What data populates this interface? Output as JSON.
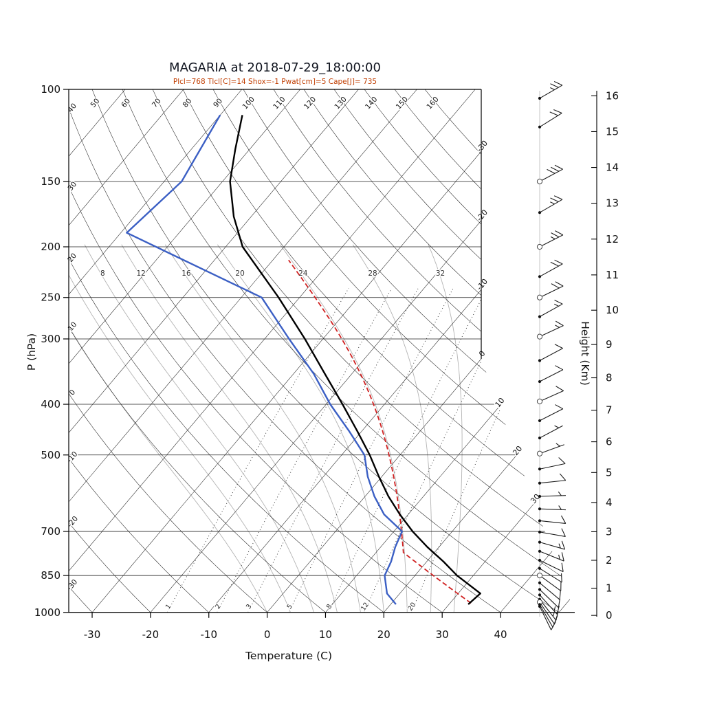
{
  "chart_data": {
    "type": "skewt-log-p",
    "title": "MAGARIA at 2018-07-29_18:00:00",
    "params_line": "Plcl=768 Tlcl[C]=14 Shox=-1 Pwat[cm]=5 Cape[J]= 735",
    "axes": {
      "pressure_label": "P (hPa)",
      "pressure_ticks_hpa": [
        100,
        150,
        200,
        250,
        300,
        400,
        500,
        700,
        850,
        1000
      ],
      "temperature_label": "Temperature (C)",
      "temperature_ticks_c": [
        -30,
        -20,
        -10,
        0,
        10,
        20,
        30,
        40
      ],
      "height_label": "Height (Km)",
      "height_ticks_km": [
        0,
        1,
        2,
        3,
        4,
        5,
        6,
        7,
        8,
        9,
        10,
        11,
        12,
        13,
        14,
        15,
        16
      ]
    },
    "background_grid": {
      "isotherms_c": [
        -110,
        -100,
        -90,
        -80,
        -70,
        -60,
        -50,
        -40,
        -30,
        -20,
        -10,
        0,
        10,
        20,
        30,
        40,
        50
      ],
      "isotherm_edge_labels_c": [
        -30,
        -20,
        -10,
        0,
        10,
        20,
        30
      ],
      "dry_adiabats_c": [
        -30,
        -20,
        -10,
        0,
        10,
        20,
        30,
        40,
        50,
        60,
        70,
        80,
        90,
        100,
        110,
        120,
        130,
        140,
        150,
        160
      ],
      "moist_adiabats_c": [
        0,
        4,
        8,
        12,
        16,
        20,
        24,
        28,
        32
      ],
      "moist_adiabat_labels_c": [
        8,
        12,
        16,
        20,
        24,
        28,
        32
      ],
      "mixing_ratio_gkg": [
        1,
        2,
        3,
        5,
        8,
        12,
        20
      ]
    },
    "sounding": {
      "temperature_p_c": [
        [
          965,
          33.3
        ],
        [
          920,
          33.8
        ],
        [
          850,
          27.2
        ],
        [
          800,
          22.9
        ],
        [
          750,
          18.0
        ],
        [
          700,
          13.2
        ],
        [
          650,
          8.6
        ],
        [
          600,
          4.0
        ],
        [
          550,
          -0.5
        ],
        [
          500,
          -5.2
        ],
        [
          450,
          -10.8
        ],
        [
          400,
          -17.2
        ],
        [
          350,
          -24.6
        ],
        [
          300,
          -33.1
        ],
        [
          250,
          -43.6
        ],
        [
          200,
          -57.1
        ],
        [
          175,
          -63.0
        ],
        [
          150,
          -68.7
        ],
        [
          130,
          -72.5
        ],
        [
          112,
          -76.2
        ]
      ],
      "dewpoint_p_c": [
        [
          965,
          20.9
        ],
        [
          920,
          17.8
        ],
        [
          850,
          14.8
        ],
        [
          800,
          13.9
        ],
        [
          750,
          12.5
        ],
        [
          700,
          11.4
        ],
        [
          650,
          5.9
        ],
        [
          600,
          1.6
        ],
        [
          550,
          -2.4
        ],
        [
          500,
          -6.1
        ],
        [
          450,
          -12.2
        ],
        [
          400,
          -19.3
        ],
        [
          350,
          -26.5
        ],
        [
          300,
          -35.8
        ],
        [
          250,
          -46.5
        ],
        [
          188,
          -79.0
        ],
        [
          150,
          -77.0
        ],
        [
          112,
          -80.0
        ]
      ],
      "parcel": {
        "p_surface_hpa": 960,
        "t_surface_c": 33.6,
        "p_lcl_hpa": 768,
        "t_lcl_c": 14,
        "p_top_hpa": 212,
        "cape_j": 735,
        "pwat_cm": 5,
        "showalter": -1
      }
    },
    "wind_barbs": [
      {
        "p": 104,
        "kt": 25,
        "dir": 60,
        "marker": "dot"
      },
      {
        "p": 118,
        "kt": 20,
        "dir": 58,
        "marker": "dot"
      },
      {
        "p": 150,
        "kt": 30,
        "dir": 62,
        "marker": "circle"
      },
      {
        "p": 172,
        "kt": 25,
        "dir": 60,
        "marker": "dot"
      },
      {
        "p": 200,
        "kt": 25,
        "dir": 63,
        "marker": "circle"
      },
      {
        "p": 228,
        "kt": 20,
        "dir": 61,
        "marker": "dot"
      },
      {
        "p": 250,
        "kt": 20,
        "dir": 64,
        "marker": "circle"
      },
      {
        "p": 272,
        "kt": 15,
        "dir": 61,
        "marker": "dot"
      },
      {
        "p": 297,
        "kt": 15,
        "dir": 65,
        "marker": "circle"
      },
      {
        "p": 330,
        "kt": 10,
        "dir": 62,
        "marker": "dot"
      },
      {
        "p": 362,
        "kt": 10,
        "dir": 63,
        "marker": "dot"
      },
      {
        "p": 395,
        "kt": 10,
        "dir": 66,
        "marker": "circle"
      },
      {
        "p": 430,
        "kt": 10,
        "dir": 63,
        "marker": "dot"
      },
      {
        "p": 464,
        "kt": 5,
        "dir": 62,
        "marker": "dot"
      },
      {
        "p": 497,
        "kt": 5,
        "dir": 70,
        "marker": "circle"
      },
      {
        "p": 532,
        "kt": 10,
        "dir": 78,
        "marker": "dot"
      },
      {
        "p": 566,
        "kt": 10,
        "dir": 84,
        "marker": "dot"
      },
      {
        "p": 600,
        "kt": 5,
        "dir": 88,
        "marker": "dot"
      },
      {
        "p": 634,
        "kt": 5,
        "dir": 92,
        "marker": "dot"
      },
      {
        "p": 668,
        "kt": 10,
        "dir": 96,
        "marker": "dot"
      },
      {
        "p": 702,
        "kt": 10,
        "dir": 100,
        "marker": "dot"
      },
      {
        "p": 734,
        "kt": 15,
        "dir": 106,
        "marker": "dot"
      },
      {
        "p": 764,
        "kt": 15,
        "dir": 112,
        "marker": "dot"
      },
      {
        "p": 795,
        "kt": 10,
        "dir": 116,
        "marker": "dot"
      },
      {
        "p": 824,
        "kt": 10,
        "dir": 122,
        "marker": "dot"
      },
      {
        "p": 850,
        "kt": 10,
        "dir": 126,
        "marker": "circle"
      },
      {
        "p": 878,
        "kt": 10,
        "dir": 130,
        "marker": "dot"
      },
      {
        "p": 904,
        "kt": 10,
        "dir": 134,
        "marker": "dot"
      },
      {
        "p": 926,
        "kt": 15,
        "dir": 138,
        "marker": "dot"
      },
      {
        "p": 944,
        "kt": 15,
        "dir": 142,
        "marker": "dot"
      },
      {
        "p": 956,
        "kt": 10,
        "dir": 146,
        "marker": "circle"
      },
      {
        "p": 966,
        "kt": 10,
        "dir": 150,
        "marker": "dot"
      },
      {
        "p": 974,
        "kt": 10,
        "dir": 154,
        "marker": "dot"
      }
    ]
  },
  "colors": {
    "temperature_curve": "#000000",
    "dewpoint_curve": "#3b5fc4",
    "parcel_curve": "#d02020",
    "subtitle": "#c03d00",
    "grid_line": "#1f1f1f",
    "moist_adiabat": "#b3b3b3",
    "mixing_ratio": "#3a3a3a",
    "barb": "#1a1a1a",
    "background": "#ffffff"
  }
}
